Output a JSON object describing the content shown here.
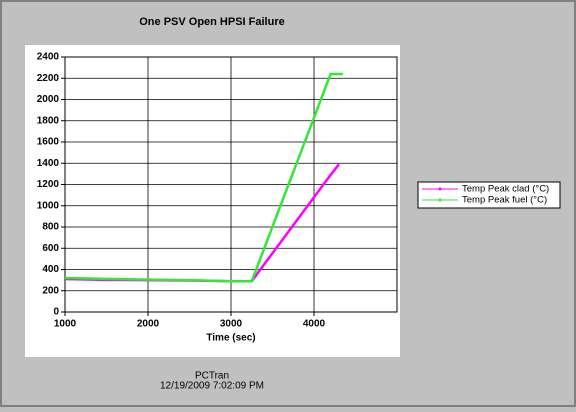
{
  "chart_data": {
    "type": "line",
    "title": "One PSV Open HPSI Failure",
    "x_label": "Time (sec)",
    "x": [
      1000,
      1500,
      2000,
      2500,
      3000,
      3250,
      4200,
      4300,
      4350
    ],
    "series": [
      {
        "name": "Temp Peak clad (°C)",
        "color": "#ff00ff",
        "values": [
          310,
          302,
          300,
          296,
          290,
          290,
          1290,
          1390,
          null
        ]
      },
      {
        "name": "Temp Peak fuel (°C)",
        "color": "#33e833",
        "values": [
          320,
          312,
          305,
          300,
          290,
          290,
          2240,
          2240,
          2240
        ]
      }
    ],
    "xlim": [
      1000,
      5000
    ],
    "xticks": [
      1000,
      2000,
      3000,
      4000
    ],
    "ylim": [
      0,
      2400
    ],
    "yticks": [
      0,
      200,
      400,
      600,
      800,
      1000,
      1200,
      1400,
      1600,
      1800,
      2000,
      2200,
      2400
    ],
    "grid": true,
    "legend": "right",
    "footer": [
      "PCTran",
      "12/19/2009 7:02:09 PM"
    ]
  }
}
